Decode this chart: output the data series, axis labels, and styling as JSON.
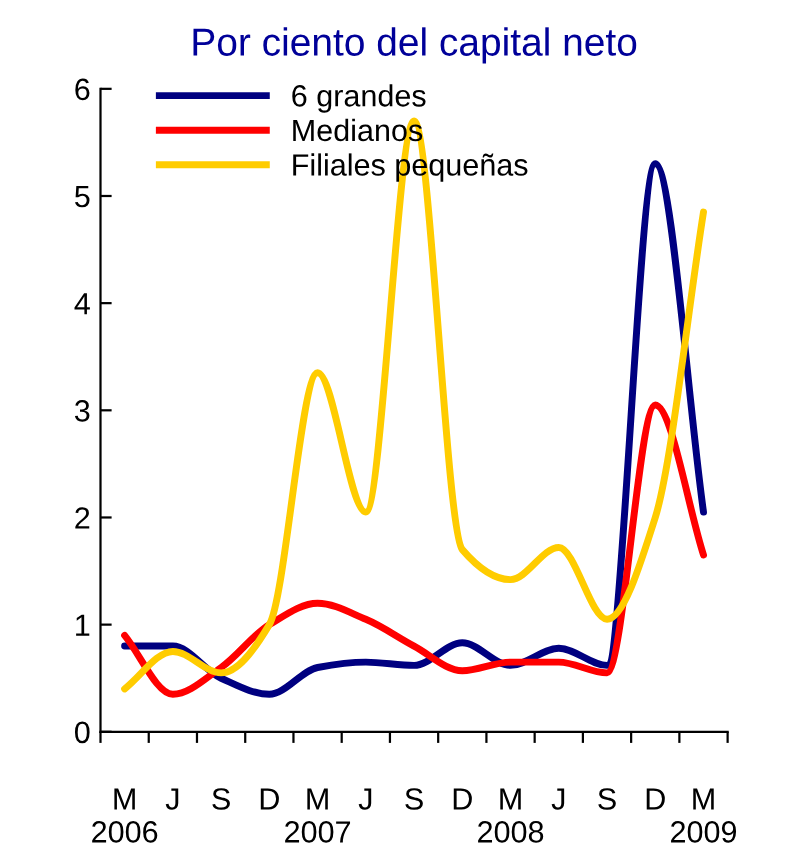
{
  "chart_data": {
    "type": "line",
    "title": "Por ciento del capital neto",
    "categories": [
      "M\n2006",
      "J",
      "S",
      "D",
      "M\n2007",
      "J",
      "S",
      "D",
      "M\n2008",
      "J",
      "S",
      "D",
      "M\n2009"
    ],
    "series": [
      {
        "name": "6 grandes",
        "color": "#000080",
        "values": [
          0.8,
          0.8,
          0.5,
          0.35,
          0.6,
          0.65,
          0.62,
          0.83,
          0.62,
          0.78,
          0.62,
          5.3,
          2.05
        ]
      },
      {
        "name": "Medianos",
        "color": "#ff0000",
        "values": [
          0.9,
          0.35,
          0.6,
          1.0,
          1.2,
          1.05,
          0.8,
          0.57,
          0.65,
          0.65,
          0.55,
          3.05,
          1.65
        ]
      },
      {
        "name": "Filiales pequeñas",
        "color": "#ffcc00",
        "values": [
          0.4,
          0.75,
          0.55,
          1.0,
          3.35,
          2.05,
          5.7,
          1.7,
          1.42,
          1.72,
          1.05,
          2.0,
          4.85
        ]
      }
    ],
    "ylim": [
      0,
      6
    ],
    "yticks": [
      0,
      1,
      2,
      3,
      4,
      5,
      6
    ],
    "grid": false,
    "legend": "top left",
    "marker": "none",
    "line_style": "solid"
  }
}
